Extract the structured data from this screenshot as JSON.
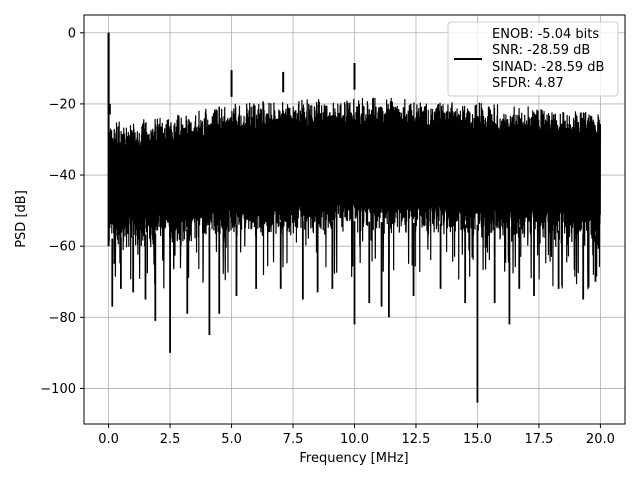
{
  "chart_data": {
    "type": "line",
    "xlabel": "Frequency [MHz]",
    "ylabel": "PSD [dB]",
    "xlim": [
      -1.0,
      21.0
    ],
    "ylim": [
      -110,
      5
    ],
    "x_ticks": [
      0.0,
      2.5,
      5.0,
      7.5,
      10.0,
      12.5,
      15.0,
      17.5,
      20.0
    ],
    "x_tick_labels": [
      "0.0",
      "2.5",
      "5.0",
      "7.5",
      "10.0",
      "12.5",
      "15.0",
      "17.5",
      "20.0"
    ],
    "y_ticks": [
      0,
      -20,
      -40,
      -60,
      -80,
      -100
    ],
    "y_tick_labels": [
      "0",
      "−20",
      "−40",
      "−60",
      "−80",
      "−100"
    ],
    "grid": true,
    "legend_position": "top-right",
    "line_color": "#000000",
    "series": [
      {
        "name": "ENOB: -5.04 bits\nSNR: -28.59 dB\nSINAD: -28.59 dB\nSFDR: 4.87",
        "legend_lines": [
          "ENOB: -5.04 bits",
          "SNR: -28.59 dB",
          "SINAD: -28.59 dB",
          "SFDR: 4.87"
        ],
        "upper_envelope": [
          [
            0.0,
            -25
          ],
          [
            2.5,
            -23
          ],
          [
            5.0,
            -20
          ],
          [
            7.5,
            -18.5
          ],
          [
            10.0,
            -18
          ],
          [
            12.5,
            -18.5
          ],
          [
            15.0,
            -19.5
          ],
          [
            17.5,
            -20.5
          ],
          [
            20.0,
            -22
          ]
        ],
        "lower_envelope": [
          [
            0.0,
            -62
          ],
          [
            2.5,
            -60
          ],
          [
            5.0,
            -58
          ],
          [
            7.5,
            -57
          ],
          [
            10.0,
            -57
          ],
          [
            12.5,
            -57.5
          ],
          [
            15.0,
            -58
          ],
          [
            17.5,
            -59
          ],
          [
            20.0,
            -61
          ]
        ],
        "peaks": [
          [
            0.0,
            0
          ],
          [
            0.05,
            -20
          ],
          [
            5.0,
            -10.5
          ],
          [
            7.1,
            -11
          ],
          [
            10.0,
            -8.5
          ]
        ],
        "notches": [
          [
            0.15,
            -77
          ],
          [
            0.5,
            -72
          ],
          [
            1.0,
            -73
          ],
          [
            1.5,
            -75
          ],
          [
            1.9,
            -81
          ],
          [
            2.5,
            -90
          ],
          [
            3.2,
            -79
          ],
          [
            4.1,
            -85
          ],
          [
            4.5,
            -79
          ],
          [
            5.2,
            -74
          ],
          [
            6.0,
            -72
          ],
          [
            7.0,
            -72
          ],
          [
            7.9,
            -75
          ],
          [
            8.5,
            -73
          ],
          [
            9.1,
            -72
          ],
          [
            10.0,
            -82
          ],
          [
            10.6,
            -76
          ],
          [
            11.1,
            -77
          ],
          [
            11.4,
            -80
          ],
          [
            12.4,
            -74
          ],
          [
            13.5,
            -72
          ],
          [
            14.5,
            -76
          ],
          [
            15.0,
            -104
          ],
          [
            15.7,
            -76
          ],
          [
            16.3,
            -82
          ],
          [
            16.7,
            -72
          ],
          [
            17.3,
            -74
          ],
          [
            18.3,
            -72
          ],
          [
            19.3,
            -75
          ],
          [
            19.8,
            -70
          ]
        ]
      }
    ]
  }
}
